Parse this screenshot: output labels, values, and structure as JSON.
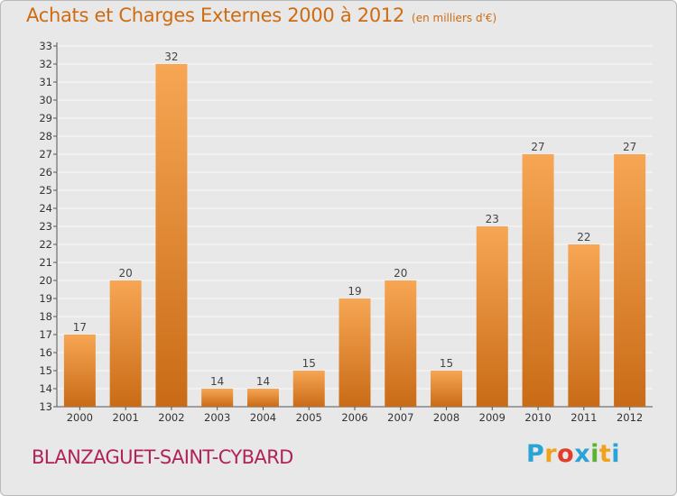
{
  "header": {
    "title": "Achats et Charges Externes 2000 à 2012",
    "unit": "(en milliers d'€)"
  },
  "footer": {
    "place": "BLANZAGUET-SAINT-CYBARD",
    "logo": {
      "letters": [
        "P",
        "r",
        "o",
        "x",
        "i",
        "t",
        "i"
      ],
      "colors": [
        "#2aa3d6",
        "#f0a21a",
        "#e23c2a",
        "#2aa3d6",
        "#5bb431",
        "#f0a21a",
        "#2aa3d6"
      ]
    }
  },
  "chart_data": {
    "type": "bar",
    "title": "Achats et Charges Externes 2000 à 2012",
    "subtitle": "(en milliers d'€)",
    "categories": [
      "2000",
      "2001",
      "2002",
      "2003",
      "2004",
      "2005",
      "2006",
      "2007",
      "2008",
      "2009",
      "2010",
      "2011",
      "2012"
    ],
    "values": [
      17,
      20,
      32,
      14,
      14,
      15,
      19,
      20,
      15,
      23,
      27,
      22,
      27
    ],
    "ylim": [
      13,
      33
    ],
    "yticks": [
      13,
      14,
      15,
      16,
      17,
      18,
      19,
      20,
      21,
      22,
      23,
      24,
      25,
      26,
      27,
      28,
      29,
      30,
      31,
      32,
      33
    ],
    "grid": true,
    "colors": {
      "bar_top": "#f7a654",
      "bar_bottom": "#c96b16",
      "background": "#e8e8e8"
    }
  }
}
